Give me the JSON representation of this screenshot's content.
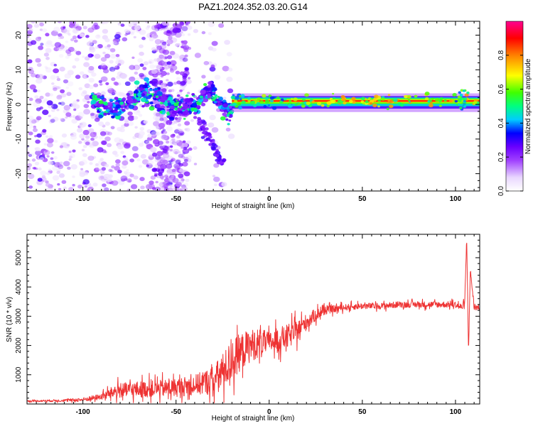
{
  "title": "PAZ1.2024.352.03.20.G14",
  "chart_data": [
    {
      "type": "heatmap",
      "xlabel": "Height of straight line (km)",
      "ylabel": "Frequency (Hz)",
      "xlim": [
        -130,
        113
      ],
      "ylim": [
        -25,
        24
      ],
      "xticks": [
        -100,
        -50,
        0,
        50,
        100
      ],
      "yticks": [
        -20,
        -10,
        0,
        10,
        20
      ],
      "colorbar": {
        "label": "Normalized spectral amplitude",
        "range": [
          0,
          1
        ],
        "ticks": [
          "0.0",
          "0.2",
          "0.4",
          "0.6",
          "0.8"
        ],
        "colormap": [
          "#ffffff",
          "#e9d7ff",
          "#a040ff",
          "#6a00ff",
          "#0000ff",
          "#00ccff",
          "#00ff80",
          "#40ff00",
          "#ffff00",
          "#ff8000",
          "#ff0000",
          "#ff0090"
        ]
      },
      "features": [
        {
          "name": "noise",
          "x_range": [
            -130,
            -20
          ],
          "freq_range": [
            -25,
            24
          ],
          "amplitude": 0.15
        },
        {
          "name": "wandering-ridge",
          "x_range": [
            -95,
            -20
          ],
          "freq_range": [
            -5,
            8
          ],
          "amplitude": 0.4
        },
        {
          "name": "main-tone",
          "x_range": [
            -20,
            113
          ],
          "frequency": 1,
          "amplitude": 0.9
        }
      ]
    },
    {
      "type": "line",
      "xlabel": "Height of straight line (km)",
      "ylabel": "SNR (10 * v/v)",
      "xlim": [
        -130,
        113
      ],
      "ylim": [
        0,
        5800
      ],
      "xticks": [
        -100,
        -50,
        0,
        50,
        100
      ],
      "yticks": [
        1000,
        2000,
        3000,
        4000,
        5000
      ],
      "color": "#ee3333",
      "series": [
        {
          "x": [
            -130,
            -110,
            -100,
            -90,
            -82,
            -70,
            -60,
            -50,
            -40,
            -30,
            -25,
            -20,
            -15,
            -10,
            -5,
            0,
            5,
            10,
            15,
            20,
            25,
            30,
            40,
            50,
            60,
            70,
            80,
            90,
            100,
            103,
            105,
            106,
            107,
            108,
            110,
            113
          ],
          "values": [
            100,
            120,
            150,
            250,
            450,
            500,
            520,
            560,
            650,
            800,
            1100,
            1500,
            1800,
            2000,
            2100,
            2100,
            2200,
            2300,
            2500,
            2800,
            3050,
            3200,
            3300,
            3350,
            3350,
            3400,
            3400,
            3400,
            3400,
            3300,
            3400,
            5700,
            1800,
            4600,
            3300,
            3300
          ],
          "noise": [
            40,
            60,
            100,
            150,
            350,
            400,
            400,
            450,
            500,
            700,
            900,
            1000,
            900,
            800,
            700,
            500,
            600,
            600,
            500,
            400,
            300,
            200,
            150,
            150,
            150,
            150,
            150,
            150,
            150,
            200,
            200,
            100,
            100,
            200,
            150,
            150
          ]
        }
      ]
    }
  ]
}
